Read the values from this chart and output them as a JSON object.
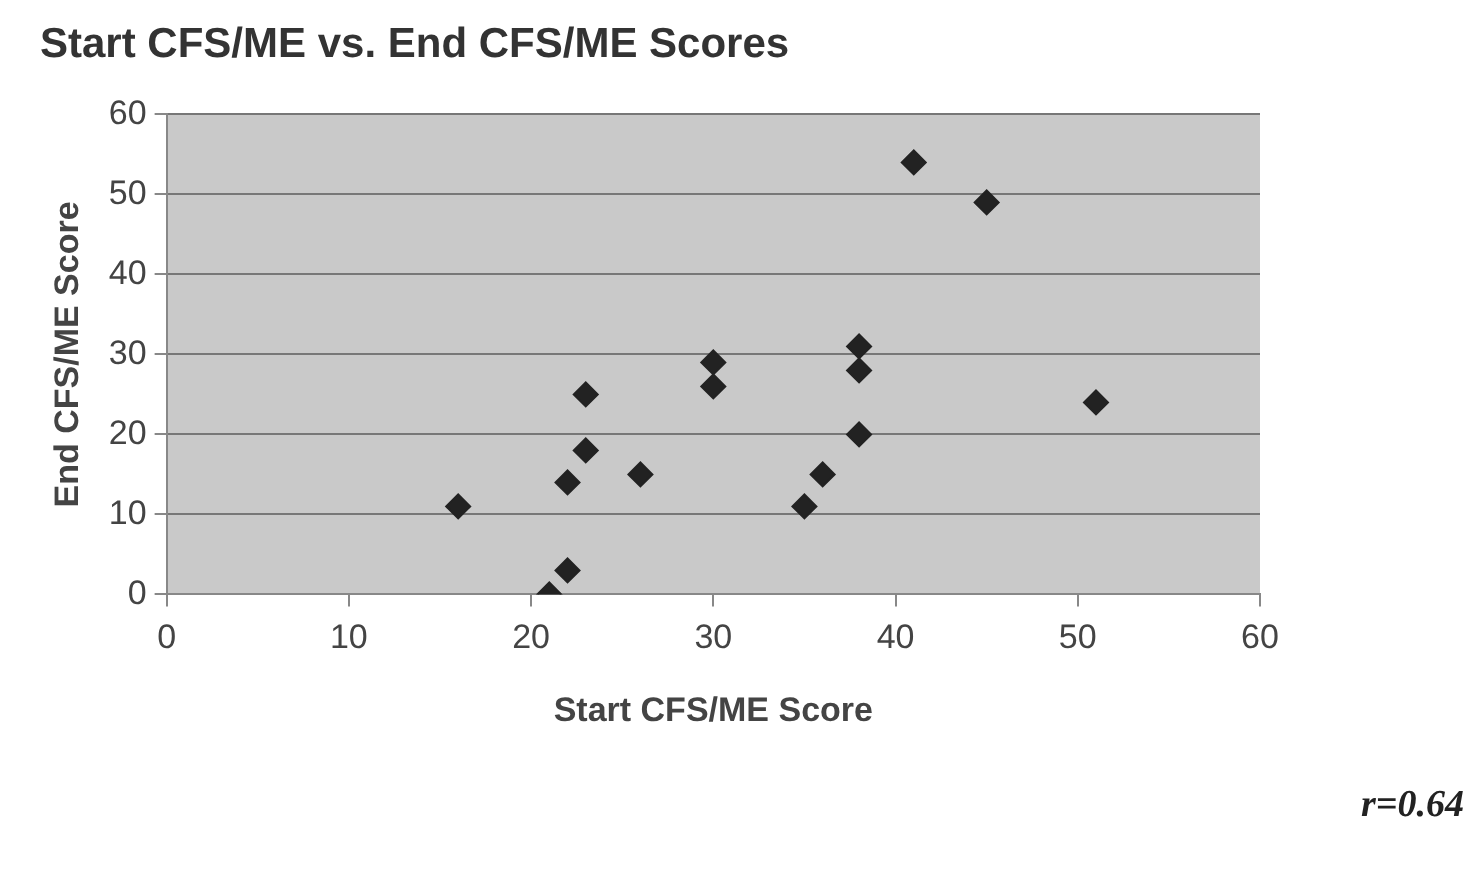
{
  "chart_data": {
    "type": "scatter",
    "title": "Start CFS/ME vs. End CFS/ME Scores",
    "xlabel": "Start CFS/ME Score",
    "ylabel": "End CFS/ME Score",
    "x": [
      16,
      21,
      22,
      22,
      23,
      23,
      26,
      30,
      30,
      35,
      36,
      38,
      38,
      38,
      41,
      45,
      51
    ],
    "series": [
      {
        "color": "#222222",
        "values": [
          11,
          0,
          3,
          14,
          18,
          25,
          15,
          29,
          26,
          11,
          15,
          20,
          28,
          31,
          54,
          49,
          24
        ]
      }
    ],
    "xlim": [
      0,
      60
    ],
    "xticks": [
      0,
      10,
      20,
      30,
      40,
      50,
      60
    ],
    "ylim": [
      0,
      60
    ],
    "yticks": [
      0,
      10,
      20,
      30,
      40,
      50,
      60
    ],
    "grid": "y",
    "marker": "diamond",
    "legend": false,
    "annotations": [
      "r=0.64"
    ]
  }
}
